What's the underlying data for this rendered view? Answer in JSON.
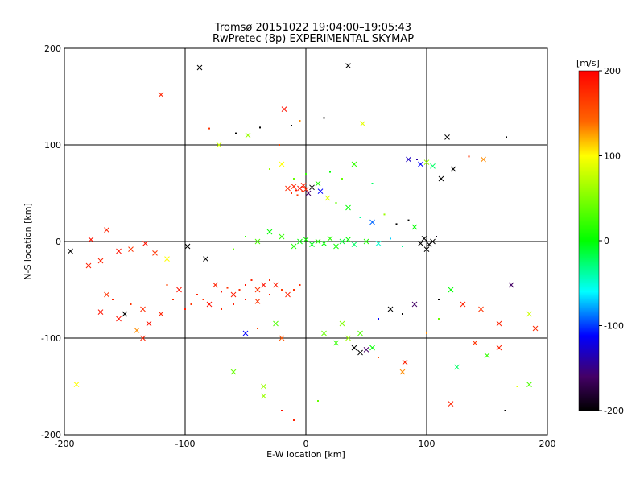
{
  "chart_data": {
    "type": "scatter",
    "title": "Tromsø 20151022 19:04:00–19:05:43",
    "subtitle": "RwPretec (8p) EXPERIMENTAL SKYMAP",
    "xlabel": "E-W location [km]",
    "ylabel": "N-S location [km]",
    "xlim": [
      -200,
      200
    ],
    "ylim": [
      -200,
      200
    ],
    "x_ticks": [
      "-200",
      "-100",
      "0",
      "100",
      "200"
    ],
    "y_ticks": [
      "-200",
      "-100",
      "0",
      "100",
      "200"
    ],
    "grid": "on",
    "colorbar": {
      "label": "[m/s]",
      "range": [
        -200,
        200
      ],
      "ticks": [
        "200",
        "100",
        "0",
        "-100",
        "-200"
      ]
    },
    "marker_legend": "small dots and x crosses; color encodes line-of-sight velocity",
    "points": [
      [
        -120,
        152,
        180,
        "x"
      ],
      [
        -88,
        180,
        -200,
        "x"
      ],
      [
        35,
        182,
        -200,
        "x"
      ],
      [
        -18,
        137,
        190,
        "x"
      ],
      [
        -80,
        117,
        170,
        "."
      ],
      [
        -72,
        100,
        80,
        "x"
      ],
      [
        -58,
        112,
        -200,
        "."
      ],
      [
        -48,
        110,
        60,
        "x"
      ],
      [
        -12,
        120,
        -200,
        "."
      ],
      [
        -5,
        125,
        130,
        "."
      ],
      [
        15,
        128,
        -200,
        "."
      ],
      [
        47,
        122,
        90,
        "x"
      ],
      [
        117,
        108,
        -200,
        "x"
      ],
      [
        166,
        108,
        -200,
        "."
      ],
      [
        -38,
        118,
        -200,
        "."
      ],
      [
        -22,
        100,
        160,
        "."
      ],
      [
        -30,
        75,
        60,
        "."
      ],
      [
        -20,
        80,
        100,
        "x"
      ],
      [
        -10,
        65,
        40,
        "."
      ],
      [
        0,
        70,
        20,
        "."
      ],
      [
        10,
        60,
        10,
        "x"
      ],
      [
        20,
        72,
        0,
        "."
      ],
      [
        30,
        65,
        40,
        "."
      ],
      [
        40,
        80,
        20,
        "x"
      ],
      [
        55,
        60,
        -20,
        "."
      ],
      [
        -15,
        55,
        175,
        "x"
      ],
      [
        -10,
        57,
        180,
        "x"
      ],
      [
        -8,
        53,
        185,
        "."
      ],
      [
        -5,
        55,
        190,
        "x"
      ],
      [
        -3,
        52,
        170,
        "."
      ],
      [
        0,
        54,
        180,
        "x"
      ],
      [
        -12,
        50,
        175,
        "."
      ],
      [
        -7,
        48,
        165,
        "."
      ],
      [
        -2,
        58,
        180,
        "x"
      ],
      [
        2,
        50,
        -150,
        "x"
      ],
      [
        5,
        56,
        -200,
        "x"
      ],
      [
        12,
        52,
        -100,
        "x"
      ],
      [
        18,
        45,
        90,
        "x"
      ],
      [
        25,
        40,
        40,
        "."
      ],
      [
        35,
        35,
        0,
        "x"
      ],
      [
        45,
        25,
        -30,
        "."
      ],
      [
        55,
        20,
        -80,
        "x"
      ],
      [
        65,
        28,
        60,
        "."
      ],
      [
        75,
        18,
        -200,
        "."
      ],
      [
        85,
        22,
        -200,
        "."
      ],
      [
        90,
        15,
        0,
        "x"
      ],
      [
        85,
        85,
        -120,
        "x"
      ],
      [
        92,
        85,
        -130,
        "."
      ],
      [
        95,
        80,
        -100,
        "x"
      ],
      [
        100,
        82,
        60,
        "x"
      ],
      [
        105,
        78,
        -20,
        "x"
      ],
      [
        112,
        65,
        -200,
        "x"
      ],
      [
        122,
        75,
        -200,
        "x"
      ],
      [
        135,
        88,
        170,
        "."
      ],
      [
        147,
        85,
        130,
        "x"
      ],
      [
        -10,
        -5,
        10,
        "x"
      ],
      [
        -5,
        0,
        0,
        "x"
      ],
      [
        0,
        2,
        5,
        "x"
      ],
      [
        5,
        -3,
        -5,
        "x"
      ],
      [
        10,
        0,
        10,
        "x"
      ],
      [
        15,
        -2,
        0,
        "x"
      ],
      [
        20,
        3,
        15,
        "x"
      ],
      [
        25,
        -5,
        5,
        "x"
      ],
      [
        30,
        0,
        -10,
        "x"
      ],
      [
        35,
        2,
        0,
        "x"
      ],
      [
        40,
        -3,
        -20,
        "x"
      ],
      [
        50,
        0,
        10,
        "x"
      ],
      [
        60,
        -2,
        -40,
        "x"
      ],
      [
        70,
        3,
        -60,
        "."
      ],
      [
        80,
        -5,
        -30,
        "."
      ],
      [
        -20,
        5,
        20,
        "x"
      ],
      [
        -30,
        10,
        0,
        "x"
      ],
      [
        -40,
        0,
        30,
        "x"
      ],
      [
        -50,
        5,
        20,
        "."
      ],
      [
        -60,
        -8,
        40,
        "."
      ],
      [
        95,
        -2,
        -200,
        "x"
      ],
      [
        98,
        3,
        -200,
        "x"
      ],
      [
        102,
        -3,
        -200,
        "x"
      ],
      [
        105,
        0,
        -200,
        "x"
      ],
      [
        100,
        -8,
        -200,
        "x"
      ],
      [
        108,
        5,
        -190,
        "."
      ],
      [
        -75,
        -45,
        180,
        "x"
      ],
      [
        -70,
        -52,
        190,
        "."
      ],
      [
        -65,
        -48,
        170,
        "."
      ],
      [
        -60,
        -55,
        185,
        "x"
      ],
      [
        -55,
        -50,
        175,
        "."
      ],
      [
        -50,
        -45,
        190,
        "."
      ],
      [
        -45,
        -40,
        180,
        "."
      ],
      [
        -40,
        -50,
        170,
        "x"
      ],
      [
        -35,
        -45,
        190,
        "x"
      ],
      [
        -30,
        -40,
        175,
        "."
      ],
      [
        -25,
        -45,
        185,
        "x"
      ],
      [
        -20,
        -50,
        165,
        "."
      ],
      [
        -15,
        -55,
        180,
        "x"
      ],
      [
        -10,
        -50,
        170,
        "."
      ],
      [
        -5,
        -45,
        175,
        "."
      ],
      [
        -85,
        -60,
        170,
        "."
      ],
      [
        -90,
        -55,
        180,
        "."
      ],
      [
        -80,
        -65,
        190,
        "x"
      ],
      [
        -70,
        -70,
        175,
        "."
      ],
      [
        -60,
        -65,
        185,
        "."
      ],
      [
        -50,
        -60,
        190,
        "."
      ],
      [
        -40,
        -62,
        170,
        "x"
      ],
      [
        -30,
        -55,
        180,
        "."
      ],
      [
        -95,
        -65,
        170,
        "."
      ],
      [
        -100,
        -70,
        185,
        "."
      ],
      [
        -105,
        -50,
        190,
        "x"
      ],
      [
        -110,
        -60,
        175,
        "."
      ],
      [
        -115,
        -45,
        160,
        "."
      ],
      [
        -120,
        -75,
        180,
        "x"
      ],
      [
        -130,
        -85,
        190,
        "x"
      ],
      [
        -135,
        -70,
        175,
        "x"
      ],
      [
        -145,
        -65,
        170,
        "."
      ],
      [
        -155,
        -80,
        190,
        "x"
      ],
      [
        -160,
        -60,
        180,
        "."
      ],
      [
        -165,
        -55,
        170,
        "x"
      ],
      [
        -170,
        -20,
        180,
        "x"
      ],
      [
        -178,
        2,
        190,
        "x"
      ],
      [
        -165,
        12,
        180,
        "x"
      ],
      [
        -155,
        -10,
        190,
        "x"
      ],
      [
        -145,
        -8,
        170,
        "x"
      ],
      [
        -133,
        -2,
        190,
        "x"
      ],
      [
        -125,
        -12,
        170,
        "x"
      ],
      [
        -115,
        -18,
        100,
        "x"
      ],
      [
        -98,
        -5,
        -200,
        "x"
      ],
      [
        -83,
        -18,
        -200,
        "x"
      ],
      [
        -140,
        -92,
        130,
        "x"
      ],
      [
        -135,
        -100,
        180,
        "x"
      ],
      [
        -170,
        -73,
        190,
        "x"
      ],
      [
        -150,
        -75,
        -200,
        "x"
      ],
      [
        -180,
        -25,
        180,
        "x"
      ],
      [
        -195,
        -10,
        -200,
        "x"
      ],
      [
        -40,
        -90,
        160,
        "."
      ],
      [
        -50,
        -95,
        -100,
        "x"
      ],
      [
        -20,
        -100,
        150,
        "x"
      ],
      [
        -25,
        -85,
        30,
        "x"
      ],
      [
        15,
        -95,
        40,
        "x"
      ],
      [
        25,
        -105,
        20,
        "x"
      ],
      [
        35,
        -100,
        60,
        "x"
      ],
      [
        45,
        -95,
        30,
        "x"
      ],
      [
        55,
        -110,
        0,
        "x"
      ],
      [
        40,
        -110,
        -200,
        "x"
      ],
      [
        45,
        -115,
        -200,
        "x"
      ],
      [
        50,
        -112,
        -150,
        "x"
      ],
      [
        30,
        -85,
        50,
        "x"
      ],
      [
        60,
        -80,
        -100,
        "."
      ],
      [
        70,
        -70,
        -200,
        "x"
      ],
      [
        80,
        -75,
        -200,
        "."
      ],
      [
        90,
        -65,
        -150,
        "x"
      ],
      [
        110,
        -60,
        -200,
        "."
      ],
      [
        120,
        -50,
        0,
        "x"
      ],
      [
        130,
        -65,
        180,
        "x"
      ],
      [
        145,
        -70,
        170,
        "x"
      ],
      [
        160,
        -85,
        180,
        "x"
      ],
      [
        170,
        -45,
        -150,
        "x"
      ],
      [
        185,
        -75,
        80,
        "x"
      ],
      [
        190,
        -90,
        175,
        "x"
      ],
      [
        -60,
        -135,
        40,
        "x"
      ],
      [
        -35,
        -150,
        60,
        "x"
      ],
      [
        -35,
        -160,
        60,
        "x"
      ],
      [
        -190,
        -148,
        100,
        "x"
      ],
      [
        82,
        -125,
        180,
        "x"
      ],
      [
        80,
        -135,
        130,
        "x"
      ],
      [
        125,
        -130,
        -20,
        "x"
      ],
      [
        140,
        -105,
        170,
        "x"
      ],
      [
        150,
        -118,
        20,
        "x"
      ],
      [
        160,
        -110,
        180,
        "x"
      ],
      [
        185,
        -148,
        30,
        "x"
      ],
      [
        120,
        -168,
        180,
        "x"
      ],
      [
        -20,
        -175,
        190,
        "."
      ],
      [
        10,
        -165,
        40,
        "."
      ],
      [
        165,
        -175,
        -200,
        "."
      ],
      [
        175,
        -150,
        90,
        "."
      ],
      [
        -10,
        -185,
        180,
        "."
      ],
      [
        60,
        -120,
        150,
        "."
      ],
      [
        100,
        -95,
        130,
        "."
      ],
      [
        110,
        -80,
        40,
        "."
      ]
    ]
  }
}
